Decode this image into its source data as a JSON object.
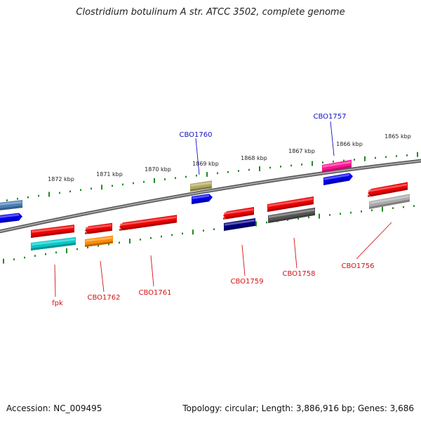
{
  "title": "Clostridium botulinum A str. ATCC 3502, complete genome",
  "footer": {
    "accession": "Accession: NC_009495",
    "stats": "Topology: circular; Length: 3,886,916 bp; Genes: 3,686"
  },
  "colors": {
    "backbone": "#777777",
    "tick": "#1f8a1f",
    "label_upper": "#1010c0",
    "label_lower": "#d41010",
    "leader_upper": "#1010c0",
    "leader_lower": "#d41010"
  },
  "kbp_scale": [
    {
      "text": "1872 kbp"
    },
    {
      "text": "1871 kbp"
    },
    {
      "text": "1870 kbp"
    },
    {
      "text": "1869 kbp"
    },
    {
      "text": "1868 kbp"
    },
    {
      "text": "1867 kbp"
    },
    {
      "text": "1866 kbp"
    },
    {
      "text": "1865 kbp"
    }
  ],
  "genes": [
    {
      "id": "gene-left-upper-1",
      "color": "#4a7fb5",
      "label": ""
    },
    {
      "id": "gene-left-upper-2",
      "color": "#0000ee",
      "label": ""
    },
    {
      "id": "gene-fpk-a",
      "color": "#ee0000",
      "label": ""
    },
    {
      "id": "gene-fpk-b",
      "color": "#00c8c8",
      "label": "fpk"
    },
    {
      "id": "gene-cbo1762-a",
      "color": "#ee0000",
      "label": ""
    },
    {
      "id": "gene-cbo1762-b",
      "color": "#ff8c00",
      "label": "CBO1762"
    },
    {
      "id": "gene-cbo1761",
      "color": "#ee0000",
      "label": "CBO1761"
    },
    {
      "id": "gene-cbo1760-a",
      "color": "#b0a860",
      "label": "CBO1760"
    },
    {
      "id": "gene-cbo1760-b",
      "color": "#0000ee",
      "label": ""
    },
    {
      "id": "gene-cbo1759-a",
      "color": "#ee0000",
      "label": ""
    },
    {
      "id": "gene-cbo1759-b",
      "color": "#000080",
      "label": "CBO1759"
    },
    {
      "id": "gene-cbo1758-a",
      "color": "#ee0000",
      "label": ""
    },
    {
      "id": "gene-cbo1758-b",
      "color": "#555555",
      "label": "CBO1758"
    },
    {
      "id": "gene-cbo1757-a",
      "color": "#ff1493",
      "label": "CBO1757"
    },
    {
      "id": "gene-cbo1757-b",
      "color": "#0000ee",
      "label": ""
    },
    {
      "id": "gene-cbo1756-a",
      "color": "#ee0000",
      "label": ""
    },
    {
      "id": "gene-cbo1756-b",
      "color": "#aaaaaa",
      "label": "CBO1756"
    }
  ]
}
